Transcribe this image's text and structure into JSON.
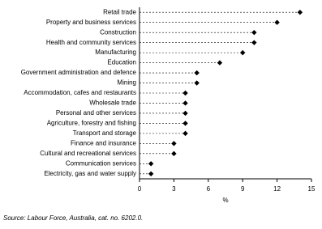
{
  "chart_data": {
    "type": "dot",
    "categories": [
      "Retail trade",
      "Property and business services",
      "Construction",
      "Health and community services",
      "Manufacturing",
      "Education",
      "Government administration and defence",
      "Mining",
      "Accommodation, cafes and restaurants",
      "Wholesale trade",
      "Personal and other services",
      "Agriculture, forestry and fishing",
      "Transport and storage",
      "Finance and insurance",
      "Cultural and recreational services",
      "Communication services",
      "Electricity, gas and water supply"
    ],
    "values": [
      14,
      12,
      10,
      10,
      9,
      7,
      5,
      5,
      4,
      4,
      4,
      4,
      4,
      3,
      3,
      1,
      1
    ],
    "color": "#000000",
    "xlabel": "%",
    "xlim": [
      0,
      15
    ],
    "xticks": [
      0,
      3,
      6,
      9,
      12,
      15
    ],
    "source": "Source: Labour Force, Australia, cat. no. 6202.0."
  }
}
